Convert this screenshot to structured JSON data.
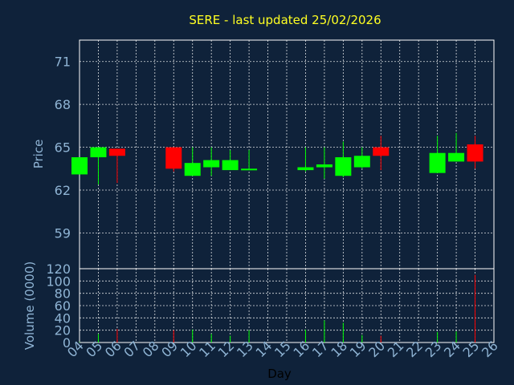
{
  "chart_data": {
    "type": "candlestick",
    "title": "SERE - last updated 25/02/2026",
    "xlabel": "Day",
    "x_ticks": [
      "04",
      "05",
      "06",
      "07",
      "08",
      "09",
      "10",
      "11",
      "12",
      "13",
      "14",
      "15",
      "16",
      "17",
      "18",
      "19",
      "20",
      "21",
      "22",
      "23",
      "24",
      "25",
      "26"
    ],
    "price_panel": {
      "ylabel": "Price",
      "ylim": [
        56.5,
        72.5
      ],
      "y_ticks": [
        59,
        62,
        65,
        68,
        71
      ],
      "grid": true
    },
    "volume_panel": {
      "ylabel": "Volume (0000)",
      "ylim": [
        0,
        120
      ],
      "y_ticks": [
        0,
        20,
        40,
        60,
        80,
        100,
        120
      ],
      "grid": true
    },
    "candles": [
      {
        "day": 4.0,
        "open": 63.1,
        "high": 64.3,
        "low": 63.1,
        "close": 64.3
      },
      {
        "day": 5.0,
        "open": 64.3,
        "high": 65.0,
        "low": 62.4,
        "close": 65.0
      },
      {
        "day": 6.0,
        "open": 64.9,
        "high": 64.9,
        "low": 62.5,
        "close": 64.4
      },
      {
        "day": 9.0,
        "open": 65.0,
        "high": 65.0,
        "low": 63.3,
        "close": 63.5
      },
      {
        "day": 10.0,
        "open": 63.0,
        "high": 65.0,
        "low": 63.0,
        "close": 63.9
      },
      {
        "day": 11.0,
        "open": 63.6,
        "high": 65.0,
        "low": 63.0,
        "close": 64.1
      },
      {
        "day": 12.0,
        "open": 63.4,
        "high": 64.8,
        "low": 63.4,
        "close": 64.1
      },
      {
        "day": 13.0,
        "open": 63.4,
        "high": 64.8,
        "low": 63.4,
        "close": 63.5
      },
      {
        "day": 16.0,
        "open": 63.4,
        "high": 65.0,
        "low": 63.3,
        "close": 63.6
      },
      {
        "day": 17.0,
        "open": 63.6,
        "high": 65.0,
        "low": 62.8,
        "close": 63.8
      },
      {
        "day": 18.0,
        "open": 63.0,
        "high": 65.4,
        "low": 62.9,
        "close": 64.3
      },
      {
        "day": 19.0,
        "open": 63.6,
        "high": 65.0,
        "low": 63.5,
        "close": 64.4
      },
      {
        "day": 20.0,
        "open": 65.0,
        "high": 65.8,
        "low": 63.4,
        "close": 64.4
      },
      {
        "day": 23.0,
        "open": 63.2,
        "high": 65.8,
        "low": 63.2,
        "close": 64.6
      },
      {
        "day": 24.0,
        "open": 64.0,
        "high": 66.0,
        "low": 64.0,
        "close": 64.6
      },
      {
        "day": 25.0,
        "open": 65.2,
        "high": 65.8,
        "low": 63.5,
        "close": 64.0
      }
    ],
    "volumes": [
      {
        "day": 4.0,
        "value": 1
      },
      {
        "day": 5.0,
        "value": 14
      },
      {
        "day": 6.0,
        "value": 22
      },
      {
        "day": 9.0,
        "value": 20
      },
      {
        "day": 10.0,
        "value": 21
      },
      {
        "day": 11.0,
        "value": 14
      },
      {
        "day": 12.0,
        "value": 11
      },
      {
        "day": 13.0,
        "value": 20
      },
      {
        "day": 16.0,
        "value": 21
      },
      {
        "day": 17.0,
        "value": 36
      },
      {
        "day": 18.0,
        "value": 32
      },
      {
        "day": 19.0,
        "value": 12
      },
      {
        "day": 20.0,
        "value": 11
      },
      {
        "day": 23.0,
        "value": 17
      },
      {
        "day": 24.0,
        "value": 18
      },
      {
        "day": 25.0,
        "value": 110
      }
    ],
    "colors": {
      "background": "#0f223a",
      "up": "#00ff00",
      "down": "#ff0000",
      "title": "#ffff22",
      "axis_text": "#8fb4d4",
      "grid": "#ffffff"
    }
  }
}
